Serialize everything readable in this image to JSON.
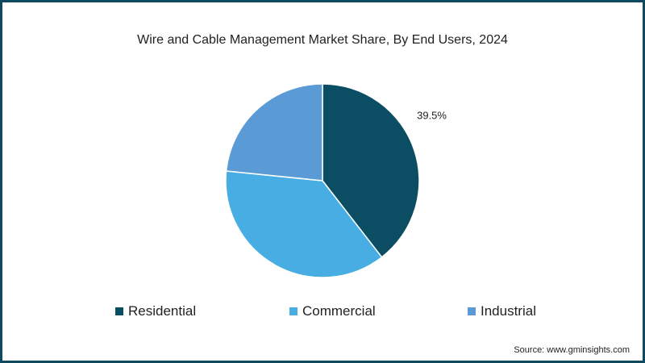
{
  "chart_data": {
    "type": "pie",
    "title": "Wire and Cable Management Market Share, By End Users, 2024",
    "slices": [
      {
        "label": "Residential",
        "value": 39.5,
        "color": "#0b4d62",
        "data_label": "39.5%"
      },
      {
        "label": "Commercial",
        "value": 37.1,
        "color": "#47ade2",
        "data_label": ""
      },
      {
        "label": "Industrial",
        "value": 23.4,
        "color": "#5b9bd5",
        "data_label": ""
      }
    ],
    "legend_position": "bottom",
    "source": "Source: www.gminsights.com"
  }
}
